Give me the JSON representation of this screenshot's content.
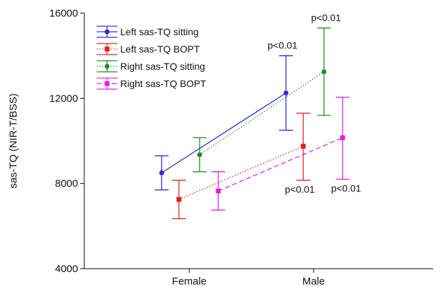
{
  "chart_data": {
    "type": "line",
    "categories": [
      "Female",
      "Male"
    ],
    "ylabel": "sas-TQ (NIR-T/BSS)",
    "xlabel": "",
    "ylim": [
      4000,
      16000
    ],
    "yticks": [
      4000,
      8000,
      12000,
      16000
    ],
    "legend_position": "top-left",
    "series": [
      {
        "name": "Left sas-TQ sitting",
        "color": "#2b2bd9",
        "marker": "circle",
        "line": "solid",
        "values": [
          8500,
          12250
        ],
        "err_low": [
          7700,
          10500
        ],
        "err_high": [
          9300,
          14000
        ],
        "annotations": [
          "",
          "p<0.01"
        ]
      },
      {
        "name": "Left sas-TQ BOPT",
        "color": "#e02020",
        "marker": "square",
        "line": "dotted",
        "values": [
          7250,
          9750
        ],
        "err_low": [
          6350,
          8150
        ],
        "err_high": [
          8150,
          11300
        ],
        "annotations": [
          "",
          "p<0.01"
        ]
      },
      {
        "name": "Right sas-TQ sitting",
        "color": "#1f8a1f",
        "marker": "circle",
        "line": "dotted",
        "values": [
          9350,
          13250
        ],
        "err_low": [
          8550,
          11200
        ],
        "err_high": [
          10150,
          15300
        ],
        "annotations": [
          "",
          "p<0.01"
        ]
      },
      {
        "name": "Right sas-TQ BOPT",
        "color": "#e020e0",
        "marker": "square",
        "line": "dashed",
        "values": [
          7650,
          10150
        ],
        "err_low": [
          6750,
          8200
        ],
        "err_high": [
          8550,
          12050
        ],
        "annotations": [
          "",
          "p<0.01"
        ]
      }
    ]
  }
}
